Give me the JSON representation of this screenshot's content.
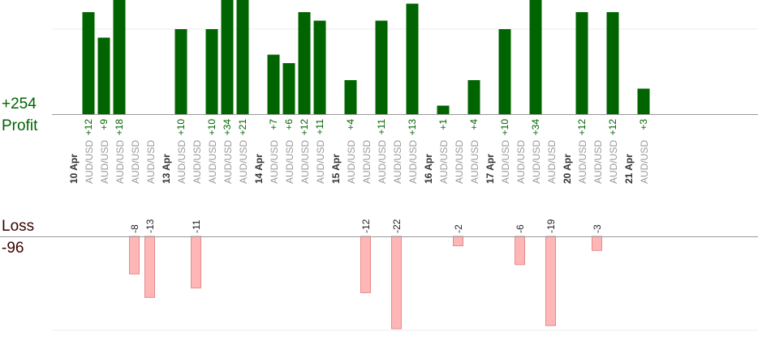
{
  "summary": {
    "profit_total": "+254",
    "profit_label": "Profit",
    "loss_label": "Loss",
    "loss_total": "-96"
  },
  "colors": {
    "profit_bar": "#006400",
    "loss_bar_fill": "#ffb6b6",
    "loss_bar_stroke": "#e68a8a",
    "profit_text": "#006400",
    "loss_text": "#222222",
    "axis": "#999999",
    "grid": "#eeeeee",
    "date_text": "#333333",
    "pair_text": "#999999"
  },
  "chart_data": {
    "type": "bar",
    "grid": true,
    "profit_ylim": [
      0,
      10
    ],
    "loss_ylim": [
      0,
      20
    ],
    "columns": [
      {
        "kind": "date",
        "text": "10 Apr"
      },
      {
        "kind": "trade",
        "text": "AUD/USD",
        "profit": 12,
        "label": "+12"
      },
      {
        "kind": "trade",
        "text": "AUD/USD",
        "profit": 9,
        "label": "+9"
      },
      {
        "kind": "trade",
        "text": "AUD/USD",
        "profit": 18,
        "label": "+18"
      },
      {
        "kind": "trade",
        "text": "AUD/USD",
        "loss": 8,
        "label": "-8"
      },
      {
        "kind": "trade",
        "text": "AUD/USD",
        "loss": 13,
        "label": "-13"
      },
      {
        "kind": "date",
        "text": "13 Apr"
      },
      {
        "kind": "trade",
        "text": "AUD/USD",
        "profit": 10,
        "label": "+10"
      },
      {
        "kind": "trade",
        "text": "AUD/USD",
        "loss": 11,
        "label": "-11"
      },
      {
        "kind": "trade",
        "text": "AUD/USD",
        "profit": 10,
        "label": "+10"
      },
      {
        "kind": "trade",
        "text": "AUD/USD",
        "profit": 34,
        "label": "+34"
      },
      {
        "kind": "trade",
        "text": "AUD/USD",
        "profit": 21,
        "label": "+21"
      },
      {
        "kind": "date",
        "text": "14 Apr"
      },
      {
        "kind": "trade",
        "text": "AUD/USD",
        "profit": 7,
        "label": "+7"
      },
      {
        "kind": "trade",
        "text": "AUD/USD",
        "profit": 6,
        "label": "+6"
      },
      {
        "kind": "trade",
        "text": "AUD/USD",
        "profit": 12,
        "label": "+12"
      },
      {
        "kind": "trade",
        "text": "AUD/USD",
        "profit": 11,
        "label": "+11"
      },
      {
        "kind": "date",
        "text": "15 Apr"
      },
      {
        "kind": "trade",
        "text": "AUD/USD",
        "profit": 4,
        "label": "+4"
      },
      {
        "kind": "trade",
        "text": "AUD/USD",
        "loss": 12,
        "label": "-12"
      },
      {
        "kind": "trade",
        "text": "AUD/USD",
        "profit": 11,
        "label": "+11"
      },
      {
        "kind": "trade",
        "text": "AUD/USD",
        "loss": 22,
        "label": "-22"
      },
      {
        "kind": "trade",
        "text": "AUD/USD",
        "profit": 13,
        "label": "+13"
      },
      {
        "kind": "date",
        "text": "16 Apr"
      },
      {
        "kind": "trade",
        "text": "AUD/USD",
        "profit": 1,
        "label": "+1"
      },
      {
        "kind": "trade",
        "text": "AUD/USD",
        "loss": 2,
        "label": "-2"
      },
      {
        "kind": "trade",
        "text": "AUD/USD",
        "profit": 4,
        "label": "+4"
      },
      {
        "kind": "date",
        "text": "17 Apr"
      },
      {
        "kind": "trade",
        "text": "AUD/USD",
        "profit": 10,
        "label": "+10"
      },
      {
        "kind": "trade",
        "text": "AUD/USD",
        "loss": 6,
        "label": "-6"
      },
      {
        "kind": "trade",
        "text": "AUD/USD",
        "profit": 34,
        "label": "+34"
      },
      {
        "kind": "trade",
        "text": "AUD/USD",
        "loss": 19,
        "label": "-19"
      },
      {
        "kind": "date",
        "text": "20 Apr"
      },
      {
        "kind": "trade",
        "text": "AUD/USD",
        "profit": 12,
        "label": "+12"
      },
      {
        "kind": "trade",
        "text": "AUD/USD",
        "loss": 3,
        "label": "-3"
      },
      {
        "kind": "trade",
        "text": "AUD/USD",
        "profit": 12,
        "label": "+12"
      },
      {
        "kind": "date",
        "text": "21 Apr"
      },
      {
        "kind": "trade",
        "text": "AUD/USD",
        "profit": 3,
        "label": "+3"
      }
    ]
  }
}
